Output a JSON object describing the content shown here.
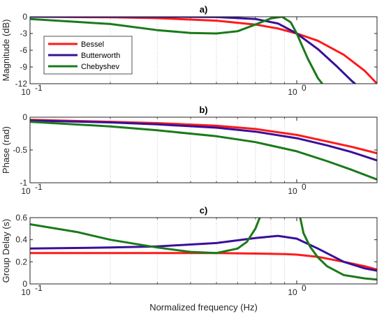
{
  "figure": {
    "xlabel": "Normalized frequency (Hz)"
  },
  "legend": [
    "Bessel",
    "Butterworth",
    "Chebyshev"
  ],
  "chart_data": [
    {
      "type": "line",
      "title": "a)",
      "ylabel": "Magnitude (dB)",
      "xlabel": "",
      "xscale": "log",
      "xlim": [
        0.1,
        2.0
      ],
      "ylim": [
        -12,
        0
      ],
      "yticks": [
        "0",
        "-3",
        "-6",
        "-9",
        "-12"
      ],
      "ytick_values": [
        0,
        -3,
        -6,
        -9,
        -12
      ],
      "xticks": [
        {
          "base": "10",
          "exp": "-1"
        },
        {
          "base": "10",
          "exp": "0"
        }
      ],
      "xtick_values": [
        0.1,
        1
      ],
      "grid": "minor-x dotted",
      "legend": "top-left",
      "series": [
        {
          "name": "Bessel",
          "color": "#ff1a1a",
          "x": [
            0.1,
            0.2,
            0.3,
            0.5,
            0.7,
            0.85,
            1.0,
            1.2,
            1.5,
            1.8,
            2.0
          ],
          "y": [
            0,
            -0.1,
            -0.25,
            -0.7,
            -1.4,
            -2.1,
            -3.0,
            -4.3,
            -6.8,
            -9.7,
            -12
          ]
        },
        {
          "name": "Butterworth",
          "color": "#3a0f99",
          "x": [
            0.1,
            0.3,
            0.5,
            0.7,
            0.85,
            1.0,
            1.2,
            1.4,
            1.6,
            1.7
          ],
          "y": [
            0,
            0,
            -0.05,
            -0.4,
            -1.2,
            -3.0,
            -5.8,
            -8.7,
            -11.4,
            -12.5
          ]
        },
        {
          "name": "Chebyshev",
          "color": "#1a7a1a",
          "x": [
            0.1,
            0.2,
            0.3,
            0.4,
            0.5,
            0.6,
            0.7,
            0.8,
            0.88,
            0.95,
            1.0,
            1.1,
            1.2,
            1.27
          ],
          "y": [
            -0.4,
            -1.3,
            -2.4,
            -2.9,
            -3.0,
            -2.6,
            -1.4,
            -0.3,
            0,
            -1.0,
            -3.0,
            -7.5,
            -11.0,
            -12.5
          ]
        }
      ]
    },
    {
      "type": "line",
      "title": "b)",
      "ylabel": "Phase (rad)",
      "xlabel": "",
      "xscale": "log",
      "xlim": [
        0.1,
        2.0
      ],
      "ylim": [
        -1,
        0
      ],
      "yticks": [
        "0",
        "-0.5",
        "-1"
      ],
      "ytick_values": [
        0,
        -0.5,
        -1
      ],
      "xticks": [
        {
          "base": "10",
          "exp": "-1"
        },
        {
          "base": "10",
          "exp": "0"
        }
      ],
      "xtick_values": [
        0.1,
        1
      ],
      "grid": "minor-x dotted",
      "series": [
        {
          "name": "Bessel",
          "color": "#ff1a1a",
          "x": [
            0.1,
            0.2,
            0.3,
            0.5,
            0.7,
            1.0,
            1.3,
            1.6,
            2.0
          ],
          "y": [
            -0.04,
            -0.07,
            -0.09,
            -0.13,
            -0.18,
            -0.27,
            -0.37,
            -0.45,
            -0.55
          ]
        },
        {
          "name": "Butterworth",
          "color": "#3a0f99",
          "x": [
            0.1,
            0.2,
            0.3,
            0.5,
            0.7,
            1.0,
            1.3,
            1.6,
            2.0
          ],
          "y": [
            -0.05,
            -0.08,
            -0.11,
            -0.16,
            -0.22,
            -0.32,
            -0.43,
            -0.53,
            -0.66
          ]
        },
        {
          "name": "Chebyshev",
          "color": "#1a7a1a",
          "x": [
            0.1,
            0.2,
            0.3,
            0.5,
            0.7,
            1.0,
            1.3,
            1.6,
            2.0
          ],
          "y": [
            -0.07,
            -0.14,
            -0.2,
            -0.29,
            -0.38,
            -0.52,
            -0.67,
            -0.8,
            -0.95
          ]
        }
      ]
    },
    {
      "type": "line",
      "title": "c)",
      "ylabel": "Group Delay (s)",
      "xlabel": "Normalized frequency (Hz)",
      "xscale": "log",
      "xlim": [
        0.1,
        2.0
      ],
      "ylim": [
        0,
        0.6
      ],
      "yticks": [
        "0.6",
        "0.4",
        "0.2",
        "0"
      ],
      "ytick_values": [
        0.6,
        0.4,
        0.2,
        0
      ],
      "xticks": [
        {
          "base": "10",
          "exp": "-1"
        },
        {
          "base": "10",
          "exp": "0"
        }
      ],
      "xtick_values": [
        0.1,
        1
      ],
      "grid": "minor-x dotted",
      "series": [
        {
          "name": "Bessel",
          "color": "#ff1a1a",
          "x": [
            0.1,
            0.3,
            0.5,
            0.7,
            0.9,
            1.0,
            1.2,
            1.5,
            1.8,
            2.0
          ],
          "y": [
            0.28,
            0.28,
            0.28,
            0.275,
            0.27,
            0.265,
            0.245,
            0.2,
            0.16,
            0.13
          ]
        },
        {
          "name": "Butterworth",
          "color": "#3a0f99",
          "x": [
            0.1,
            0.2,
            0.3,
            0.5,
            0.7,
            0.85,
            1.0,
            1.2,
            1.5,
            1.8,
            2.0
          ],
          "y": [
            0.32,
            0.33,
            0.34,
            0.37,
            0.415,
            0.435,
            0.41,
            0.32,
            0.2,
            0.14,
            0.12
          ]
        },
        {
          "name": "Chebyshev",
          "color": "#1a7a1a",
          "x": [
            0.1,
            0.15,
            0.2,
            0.3,
            0.4,
            0.5,
            0.6,
            0.65,
            0.7,
            0.74,
            1.02,
            1.06,
            1.12,
            1.2,
            1.3,
            1.5,
            1.8,
            2.0
          ],
          "y": [
            0.54,
            0.47,
            0.4,
            0.33,
            0.29,
            0.28,
            0.32,
            0.38,
            0.5,
            0.65,
            0.65,
            0.46,
            0.34,
            0.24,
            0.16,
            0.08,
            0.05,
            0.04
          ]
        }
      ]
    }
  ]
}
